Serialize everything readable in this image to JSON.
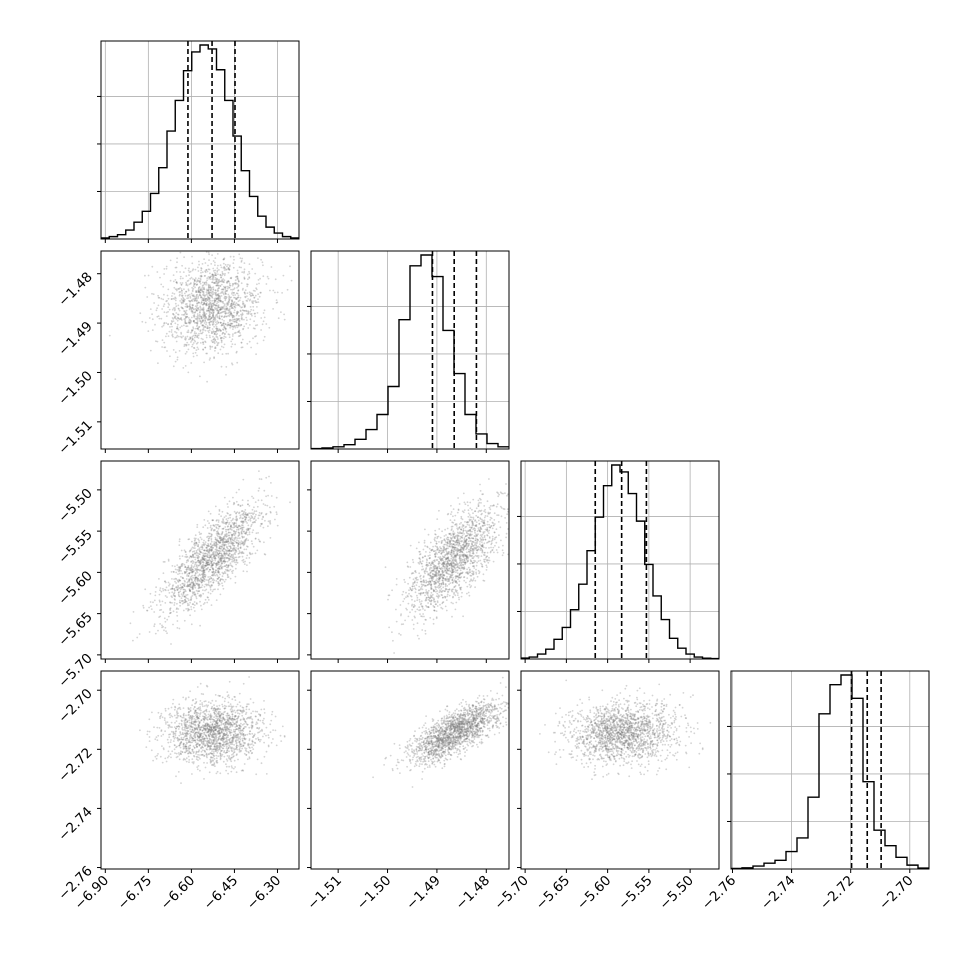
{
  "chart_data": {
    "type": "corner",
    "parameters": [
      {
        "range": [
          -6.915,
          -6.225
        ],
        "ticks": [
          -6.9,
          -6.75,
          -6.6,
          -6.45,
          -6.3
        ],
        "tick_labels": [
          "−6.90",
          "−6.75",
          "−6.60",
          "−6.45",
          "−6.30"
        ],
        "quantiles": [
          -6.612,
          -6.528,
          -6.448
        ],
        "hist": [
          0.005,
          0.012,
          0.022,
          0.045,
          0.085,
          0.14,
          0.23,
          0.36,
          0.545,
          0.7,
          0.85,
          0.945,
          0.98,
          0.96,
          0.855,
          0.7,
          0.52,
          0.345,
          0.215,
          0.115,
          0.06,
          0.03,
          0.012,
          0.005
        ]
      },
      {
        "range": [
          -1.5155,
          -1.4754
        ],
        "ticks": [
          -1.51,
          -1.5,
          -1.49,
          -1.48
        ],
        "tick_labels": [
          "−1.51",
          "−1.50",
          "−1.49",
          "−1.48"
        ],
        "quantiles": [
          -1.4909,
          -1.4865,
          -1.482
        ],
        "hist": [
          0.002,
          0.005,
          0.01,
          0.02,
          0.045,
          0.09,
          0.16,
          0.29,
          0.6,
          0.85,
          0.9,
          0.8,
          0.55,
          0.35,
          0.16,
          0.07,
          0.025,
          0.01
        ]
      },
      {
        "range": [
          -5.705,
          -5.465
        ],
        "ticks": [
          -5.7,
          -5.65,
          -5.6,
          -5.55,
          -5.5
        ],
        "tick_labels": [
          "−5.70",
          "−5.65",
          "−5.60",
          "−5.55",
          "−5.50"
        ],
        "quantiles": [
          -5.615,
          -5.583,
          -5.553
        ],
        "hist": [
          0.005,
          0.01,
          0.025,
          0.05,
          0.1,
          0.16,
          0.25,
          0.38,
          0.55,
          0.72,
          0.88,
          0.985,
          0.95,
          0.84,
          0.7,
          0.48,
          0.32,
          0.2,
          0.105,
          0.055,
          0.025,
          0.01,
          0.004,
          0.002
        ]
      },
      {
        "range": [
          -2.7605,
          -2.6935
        ],
        "ticks": [
          -2.76,
          -2.74,
          -2.72,
          -2.7
        ],
        "tick_labels": [
          "−2.76",
          "−2.74",
          "−2.72",
          "−2.70"
        ],
        "quantiles": [
          -2.7197,
          -2.7144,
          -2.7097
        ],
        "hist": [
          0.003,
          0.006,
          0.015,
          0.03,
          0.045,
          0.09,
          0.16,
          0.37,
          0.8,
          0.95,
          1.0,
          0.88,
          0.45,
          0.2,
          0.12,
          0.06,
          0.02,
          0.005
        ]
      }
    ],
    "correlations": {
      "1-0": 0.1,
      "2-0": 0.75,
      "3-0": 0.05,
      "2-1": 0.7,
      "3-1": 0.75,
      "3-2": 0.05
    },
    "grid": true
  }
}
